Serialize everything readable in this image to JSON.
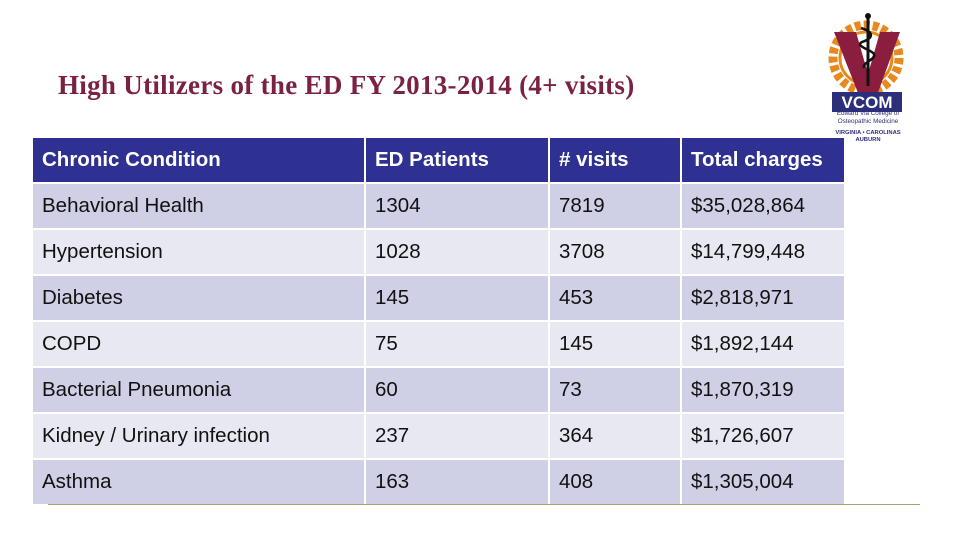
{
  "slide": {
    "title": "High Utilizers of the ED FY 2013-2014  (4+ visits)"
  },
  "logo": {
    "wordmark": "VCOM",
    "line1": "Edward Via College of",
    "line2": "Osteopathic Medicine",
    "line3": "VIRGINIA • CAROLINAS",
    "line4": "AUBURN",
    "colors": {
      "navy": "#2c2f7a",
      "orange": "#e8891e"
    }
  },
  "table": {
    "headers": [
      "Chronic Condition",
      "ED Patients",
      "# visits",
      "Total charges"
    ],
    "rows": [
      [
        "Behavioral Health",
        "1304",
        "7819",
        "$35,028,864"
      ],
      [
        "Hypertension",
        "1028",
        "3708",
        "$14,799,448"
      ],
      [
        "Diabetes",
        "145",
        "453",
        "$2,818,971"
      ],
      [
        "COPD",
        "75",
        "145",
        "$1,892,144"
      ],
      [
        "Bacterial Pneumonia",
        "60",
        "73",
        "$1,870,319"
      ],
      [
        "Kidney / Urinary infection",
        "237",
        "364",
        "$1,726,607"
      ],
      [
        "Asthma",
        "163",
        "408",
        "$1,305,004"
      ]
    ],
    "colors": {
      "header_bg": "#2e3192",
      "row_odd": "#cfcfe6",
      "row_even": "#e8e8f3"
    }
  }
}
